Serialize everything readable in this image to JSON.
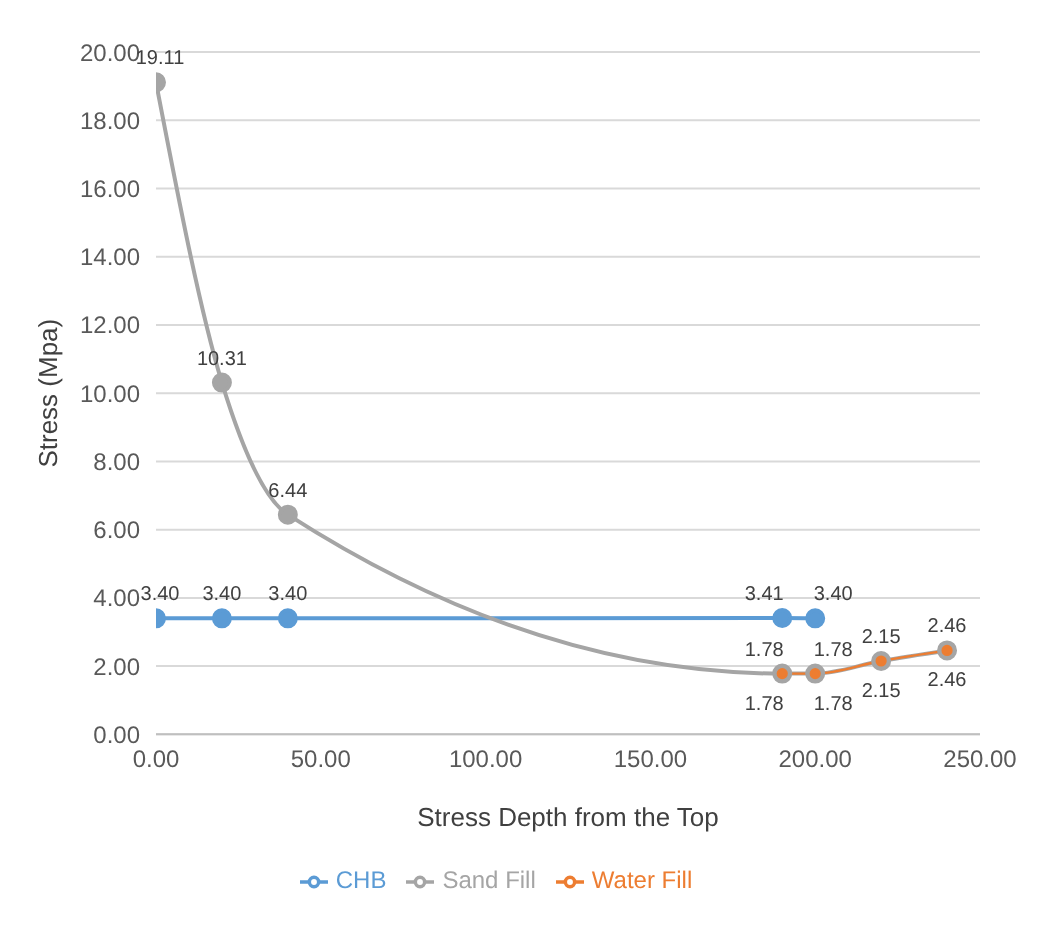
{
  "chart_data": {
    "type": "line",
    "xlabel": "Stress Depth from the Top",
    "ylabel": "Stress (Mpa)",
    "xlim": [
      0,
      250
    ],
    "xticks": [
      {
        "value": 0,
        "label": "0.00"
      },
      {
        "value": 50,
        "label": "50.00"
      },
      {
        "value": 100,
        "label": "100.00"
      },
      {
        "value": 150,
        "label": "150.00"
      },
      {
        "value": 200,
        "label": "200.00"
      },
      {
        "value": 250,
        "label": "250.00"
      }
    ],
    "ylim": [
      0,
      20
    ],
    "yticks": [
      {
        "value": 0,
        "label": "0.00"
      },
      {
        "value": 2,
        "label": "2.00"
      },
      {
        "value": 4,
        "label": "4.00"
      },
      {
        "value": 6,
        "label": "6.00"
      },
      {
        "value": 8,
        "label": "8.00"
      },
      {
        "value": 10,
        "label": "10.00"
      },
      {
        "value": 12,
        "label": "12.00"
      },
      {
        "value": 14,
        "label": "14.00"
      },
      {
        "value": 16,
        "label": "16.00"
      },
      {
        "value": 18,
        "label": "18.00"
      },
      {
        "value": 20,
        "label": "20.00"
      }
    ],
    "grid": "y",
    "legend": "bottom",
    "marker": "circle",
    "series": [
      {
        "name": "CHB",
        "color": "#5b9bd5",
        "x": [
          0,
          20,
          40,
          190,
          200
        ],
        "values": [
          3.4,
          3.4,
          3.4,
          3.41,
          3.4
        ],
        "value_labels": [
          "3.40",
          "3.40",
          "3.40",
          "3.41",
          "3.40"
        ]
      },
      {
        "name": "Water Fill",
        "color": "#ed7d31",
        "x": [
          190,
          200,
          220,
          240
        ],
        "values": [
          1.78,
          1.78,
          2.15,
          2.46
        ],
        "value_labels": [
          "1.78",
          "1.78",
          "2.15",
          "2.46"
        ]
      },
      {
        "name": "Sand Fill",
        "color": "#a5a5a5",
        "x": [
          0,
          20,
          40,
          190,
          200,
          220,
          240
        ],
        "values": [
          19.11,
          10.31,
          6.44,
          1.78,
          1.78,
          2.15,
          2.46
        ],
        "value_labels": [
          "19.11",
          "10.31",
          "6.44",
          "1.78",
          "1.78",
          "2.15",
          "2.46"
        ]
      }
    ]
  }
}
